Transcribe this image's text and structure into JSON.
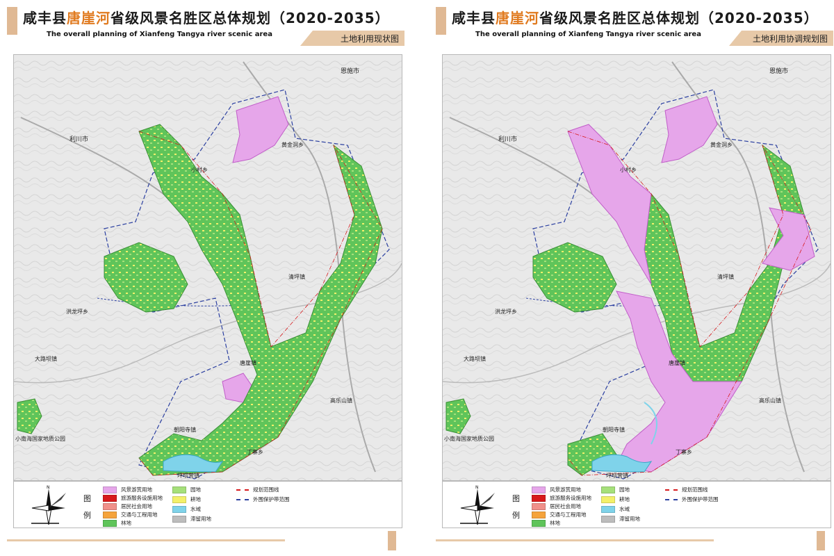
{
  "header": {
    "title_prefix": "咸丰县",
    "title_highlight": "唐崖河",
    "title_suffix": "省级风景名胜区总体规划（2020-2035）",
    "title_en": "The overall planning of Xianfeng Tangya river scenic area"
  },
  "panels": [
    {
      "subtitle": "土地利用现状图"
    },
    {
      "subtitle": "土地利用协调规划图"
    }
  ],
  "places": {
    "enshi": "恩施市",
    "lichuan": "利川市",
    "huangjindong": "黄金洞乡",
    "xiaocun": "小村乡",
    "qingping": "清坪镇",
    "hongshiping": "洪龙坪乡",
    "dalubajiao": "大路坝镇",
    "tangya": "唐崖镇",
    "gaoleshan": "高乐山镇",
    "chaoyangsi": "朝阳寺镇",
    "dingzhai": "丁寨乡",
    "pingbaying": "坪坝营镇",
    "park": "小南海国家地质公园"
  },
  "legend": {
    "head_1": "图",
    "head_2": "例",
    "items": [
      {
        "label": "风景游赏用地",
        "color": "#e6a6ea"
      },
      {
        "label": "旅游服务设施用地",
        "color": "#d7191c"
      },
      {
        "label": "居民社会用地",
        "color": "#f0908a"
      },
      {
        "label": "交通与工程用地",
        "color": "#f5a33b"
      },
      {
        "label": "林地",
        "color": "#5fc45a"
      },
      {
        "label": "园地",
        "color": "#a6e07a"
      },
      {
        "label": "耕地",
        "color": "#f3f06a"
      },
      {
        "label": "水域",
        "color": "#7fd3ea"
      },
      {
        "label": "滞留用地",
        "color": "#bdbdbd"
      }
    ],
    "lines": [
      {
        "label": "规划范围线",
        "color": "#d7191c"
      },
      {
        "label": "外围保护带范围",
        "color": "#2b3fa0"
      }
    ]
  }
}
